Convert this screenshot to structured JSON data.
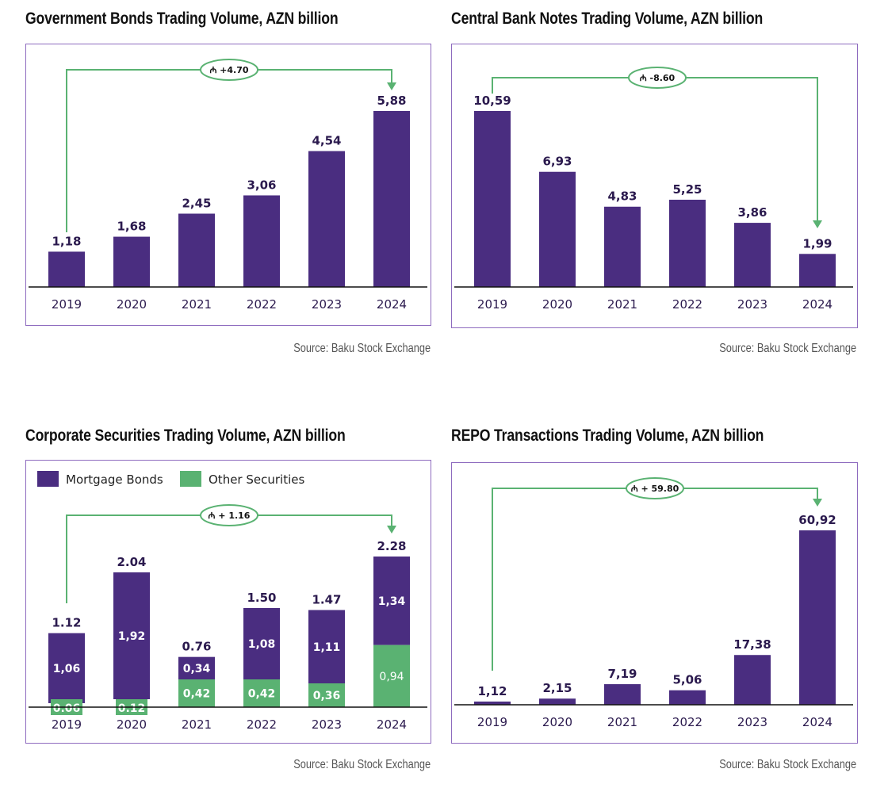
{
  "colors": {
    "primary": "#4a2d80",
    "secondary": "#5ab272",
    "border": "#8e6bbf",
    "label": "#2b1a4e"
  },
  "chart_data": [
    {
      "type": "bar",
      "title": "Government Bonds Trading Volume, AZN billion",
      "categories": [
        "2019",
        "2020",
        "2021",
        "2022",
        "2023",
        "2024"
      ],
      "values": [
        1.18,
        1.68,
        2.45,
        3.06,
        4.54,
        5.88
      ],
      "value_labels": [
        "1,18",
        "1,68",
        "2,45",
        "3,06",
        "4,54",
        "5,88"
      ],
      "annotation": "₼ +4.70",
      "source": "Source: Baku Stock Exchange",
      "grid": false
    },
    {
      "type": "bar",
      "title": "Central Bank Notes Trading Volume, AZN billion",
      "categories": [
        "2019",
        "2020",
        "2021",
        "2022",
        "2023",
        "2024"
      ],
      "values": [
        10.59,
        6.93,
        4.83,
        5.25,
        3.86,
        1.99
      ],
      "value_labels": [
        "10,59",
        "6,93",
        "4,83",
        "5,25",
        "3,86",
        "1,99"
      ],
      "annotation": "₼ -8.60",
      "source": "Source: Baku Stock Exchange",
      "grid": false
    },
    {
      "type": "stacked-bar",
      "title": "Corporate Securities Trading Volume, AZN billion",
      "categories": [
        "2019",
        "2020",
        "2021",
        "2022",
        "2023",
        "2024"
      ],
      "legend_position": "top-left",
      "series": [
        {
          "name": "Other Securities",
          "values": [
            0.06,
            0.12,
            0.42,
            0.42,
            0.36,
            0.94
          ],
          "value_labels": [
            "0.06",
            "0.12",
            "0,42",
            "0,42",
            "0,36",
            "0,94"
          ]
        },
        {
          "name": "Mortgage Bonds",
          "values": [
            1.06,
            1.92,
            0.34,
            1.08,
            1.11,
            1.34
          ],
          "value_labels": [
            "1,06",
            "1,92",
            "0,34",
            "1,08",
            "1,11",
            "1,34"
          ]
        }
      ],
      "totals": [
        1.12,
        2.04,
        0.76,
        1.5,
        1.47,
        2.28
      ],
      "total_labels": [
        "1.12",
        "2.04",
        "0.76",
        "1.50",
        "1.47",
        "2.28"
      ],
      "annotation": "₼ + 1.16",
      "source": "Source: Baku Stock Exchange",
      "grid": false
    },
    {
      "type": "bar",
      "title": "REPO Transactions Trading Volume, AZN billion",
      "categories": [
        "2019",
        "2020",
        "2021",
        "2022",
        "2023",
        "2024"
      ],
      "values": [
        1.12,
        2.15,
        7.19,
        5.06,
        17.38,
        60.92
      ],
      "value_labels": [
        "1,12",
        "2,15",
        "7,19",
        "5,06",
        "17,38",
        "60,92"
      ],
      "annotation": "₼ + 59.80",
      "source": "Source: Baku Stock Exchange",
      "grid": false
    }
  ]
}
